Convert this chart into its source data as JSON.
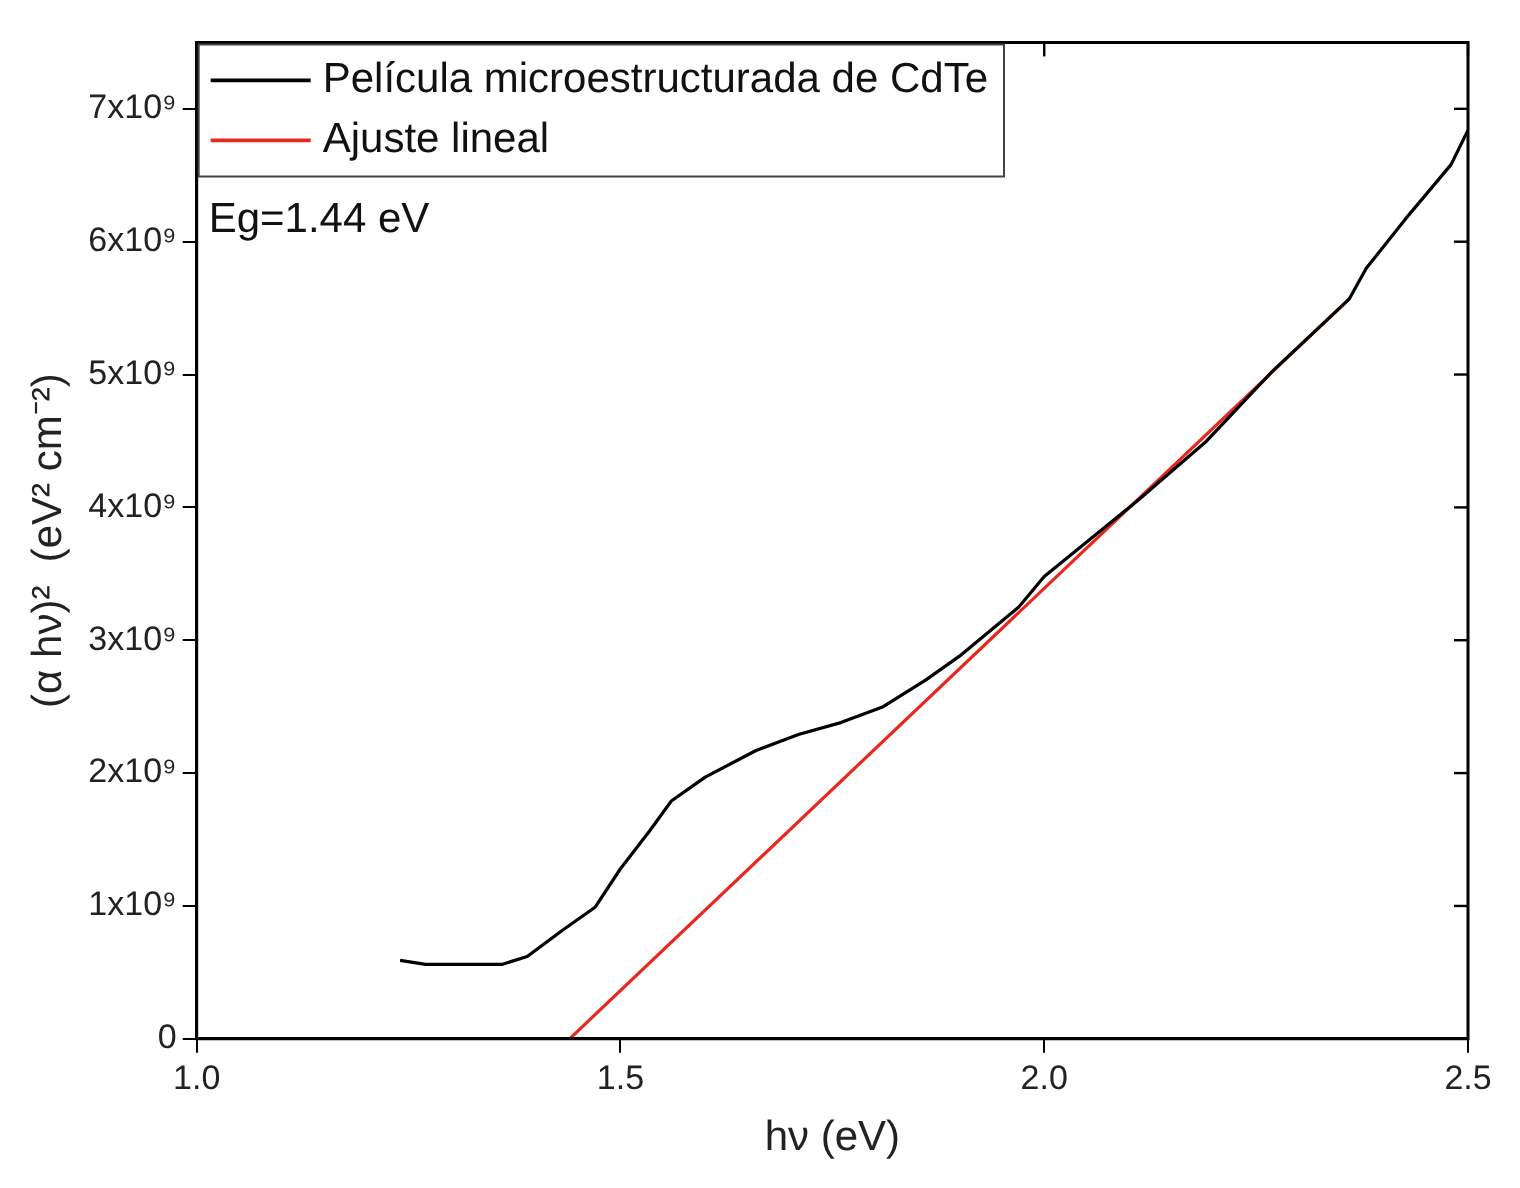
{
  "chart_data": {
    "type": "line",
    "xlabel": "hν (eV)",
    "ylabel": "(α hν)²  (eV² cm⁻²)",
    "xlim": [
      1.0,
      2.5
    ],
    "xticks": [
      {
        "value": 1.0,
        "label": "1.0"
      },
      {
        "value": 1.5,
        "label": "1.5"
      },
      {
        "value": 2.0,
        "label": "2.0"
      },
      {
        "value": 2.5,
        "label": "2.5"
      }
    ],
    "ylim": [
      0,
      7500000000
    ],
    "yticks": [
      0,
      {
        "value": 1000000000,
        "label": "1x10⁹"
      },
      {
        "value": 2000000000,
        "label": "2x10⁹"
      },
      {
        "value": 3000000000,
        "label": "3x10⁹"
      },
      {
        "value": 4000000000,
        "label": "4x10⁹"
      },
      {
        "value": 5000000000,
        "label": "5x10⁹"
      },
      {
        "value": 6000000000,
        "label": "6x10⁹"
      },
      {
        "value": 7000000000,
        "label": "7x10⁹"
      }
    ],
    "grid": false,
    "legend": "top left",
    "marker": "none",
    "line_style": "solid",
    "annotations": [
      "Eg=1.44 eV"
    ],
    "series": [
      {
        "name": "Película microestructurada de CdTe",
        "color": "#000000",
        "x": [
          1.24,
          1.27,
          1.36,
          1.39,
          1.43,
          1.47,
          1.5,
          1.535,
          1.56,
          1.6,
          1.66,
          1.71,
          1.76,
          1.81,
          1.86,
          1.9,
          1.97,
          2.0,
          2.11,
          2.19,
          2.27,
          2.36,
          2.38,
          2.43,
          2.48,
          2.5
        ],
        "values": [
          590000000,
          560000000,
          560000000,
          620000000,
          810000000,
          990000000,
          1280000000,
          1570000000,
          1790000000,
          1970000000,
          2170000000,
          2290000000,
          2380000000,
          2500000000,
          2700000000,
          2880000000,
          3250000000,
          3480000000,
          4050000000,
          4490000000,
          5030000000,
          5570000000,
          5800000000,
          6200000000,
          6580000000,
          6840000000
        ]
      },
      {
        "name": "Ajuste lineal",
        "color": "#e8281e",
        "x": [
          1.44,
          2.36
        ],
        "values": [
          0,
          5570000000
        ]
      }
    ]
  }
}
